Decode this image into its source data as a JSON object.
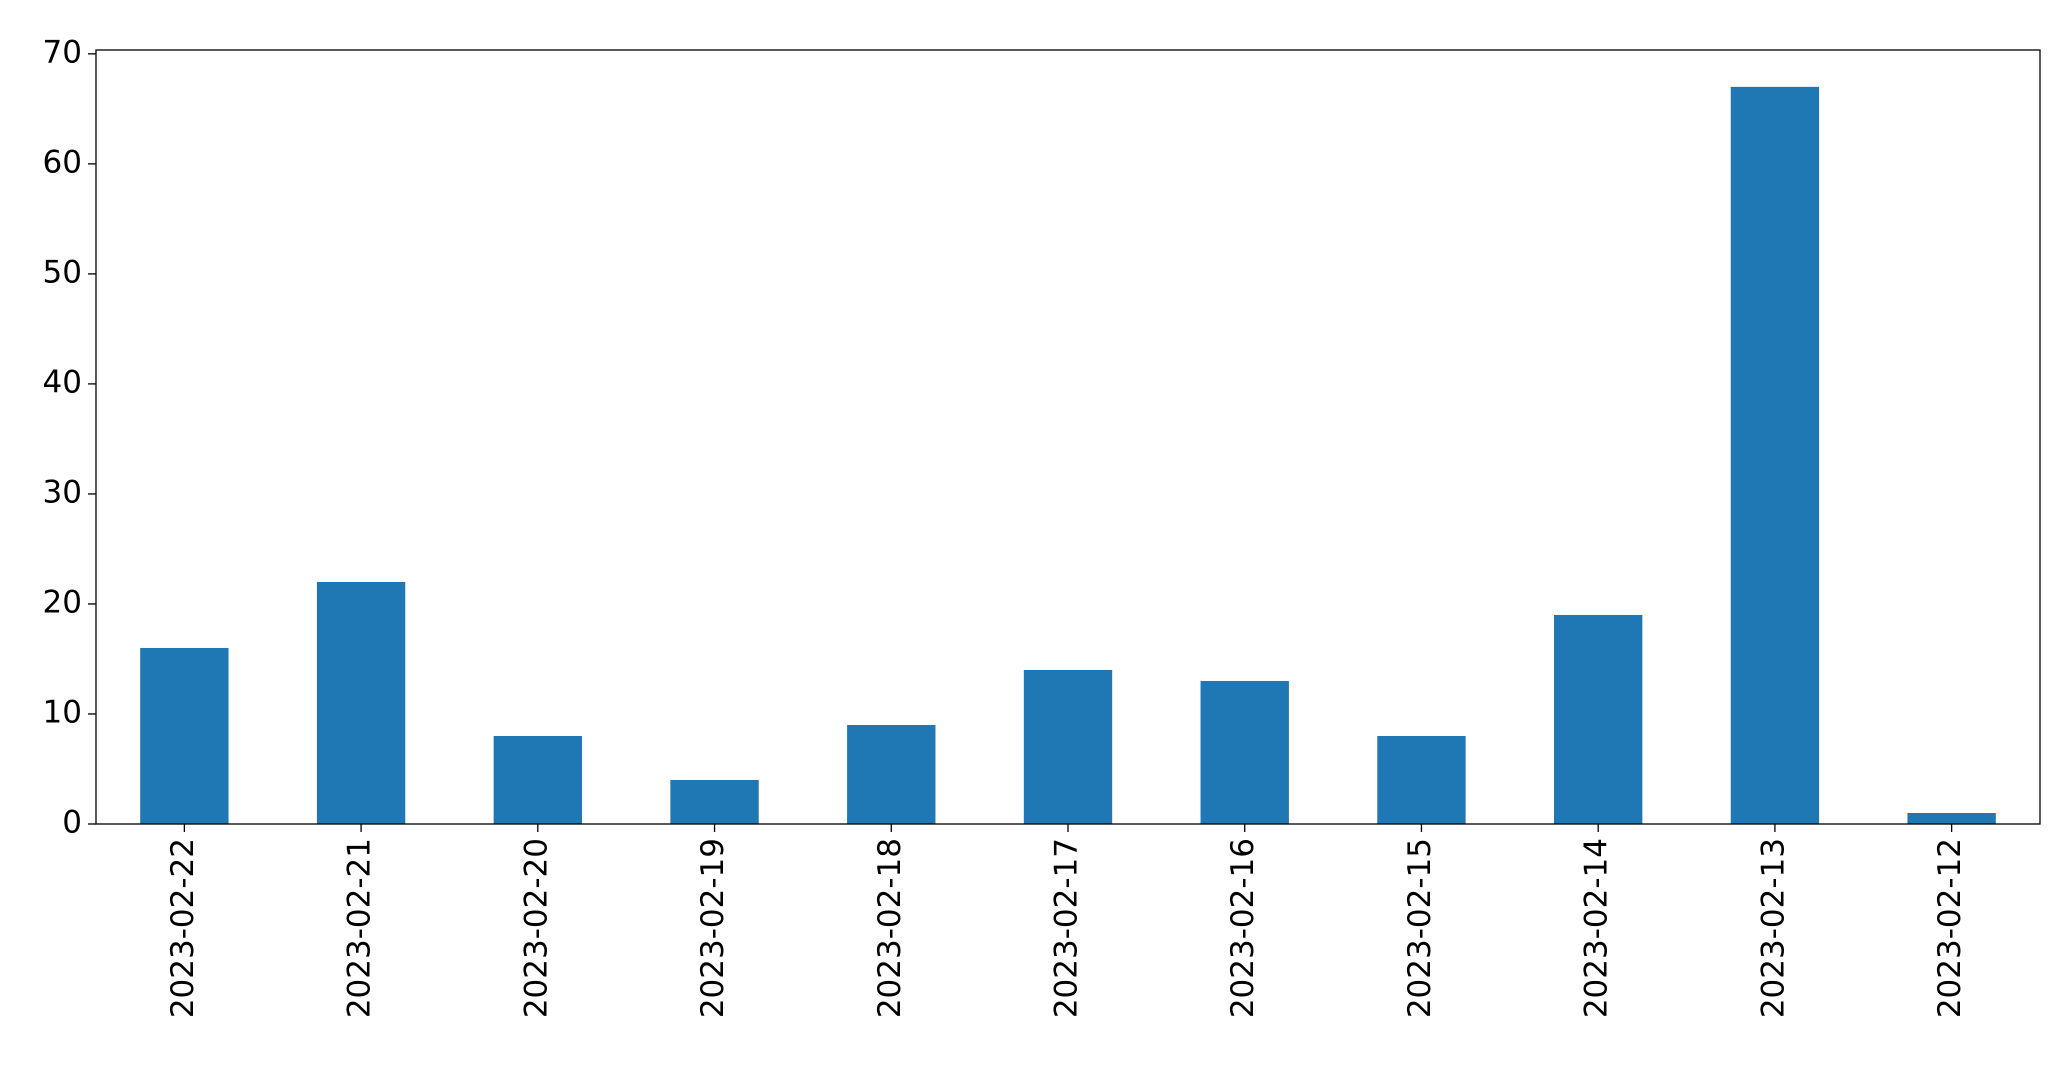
{
  "chart_data": {
    "type": "bar",
    "categories": [
      "2023-02-22",
      "2023-02-21",
      "2023-02-20",
      "2023-02-19",
      "2023-02-18",
      "2023-02-17",
      "2023-02-16",
      "2023-02-15",
      "2023-02-14",
      "2023-02-13",
      "2023-02-12"
    ],
    "values": [
      16,
      22,
      8,
      4,
      9,
      14,
      13,
      8,
      19,
      67,
      1
    ],
    "color": "#1f77b4",
    "ylim": [
      0,
      70.35
    ],
    "yticks": [
      0,
      10,
      20,
      30,
      40,
      50,
      60,
      70
    ],
    "grid": false
  }
}
